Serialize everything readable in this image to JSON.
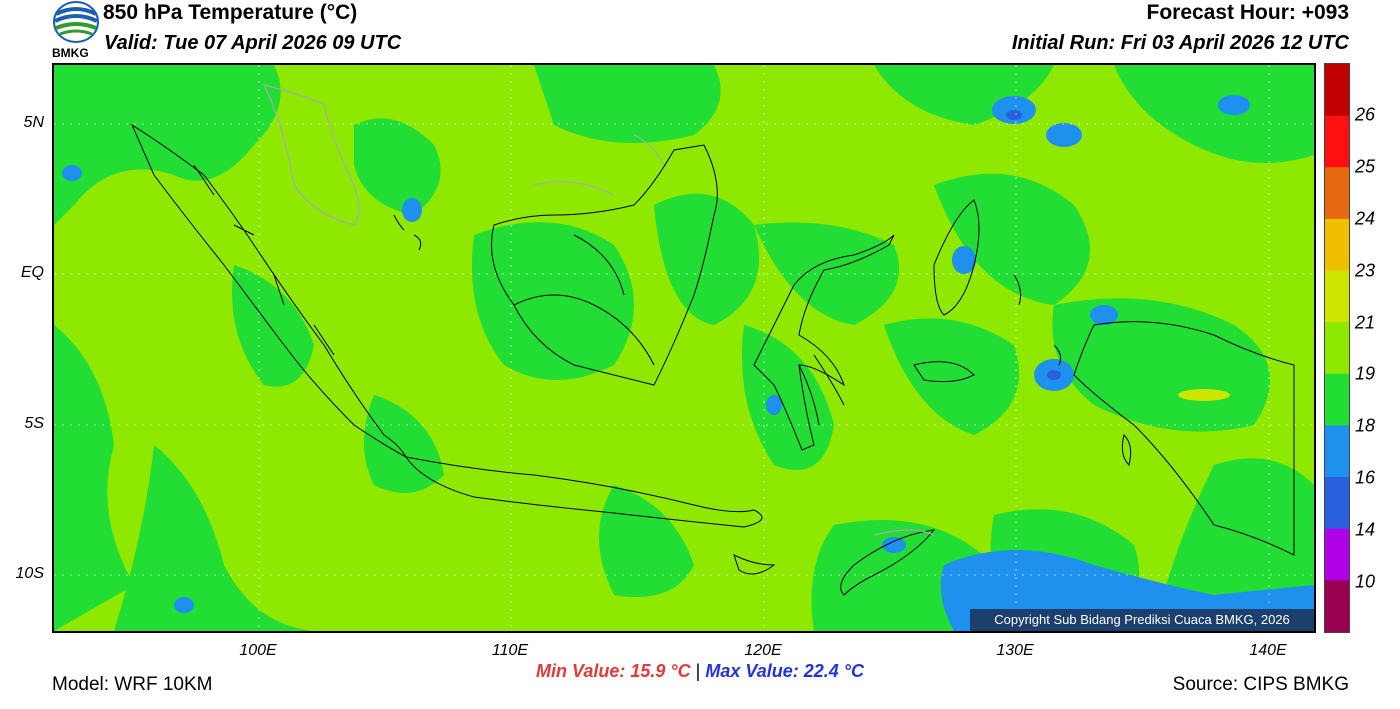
{
  "header": {
    "title": "850 hPa Temperature (°C)",
    "valid": "Valid: Tue 07 April 2026 09 UTC",
    "forecast_hour": "Forecast Hour: +093",
    "initial_run": "Initial Run: Fri 03 April 2026 12 UTC",
    "logo_text": "BMKG"
  },
  "axes": {
    "lat_ticks": [
      "5N",
      "EQ",
      "5S",
      "10S"
    ],
    "lon_ticks": [
      "100E",
      "110E",
      "120E",
      "130E",
      "140E"
    ]
  },
  "colorbar": {
    "labels": [
      "26",
      "25",
      "24",
      "23",
      "21",
      "19",
      "18",
      "16",
      "14",
      "10"
    ],
    "colors": [
      "#c00000",
      "#ff1010",
      "#e86a10",
      "#f0c000",
      "#cde600",
      "#8ee800",
      "#22dd33",
      "#1e90ee",
      "#2860e0",
      "#b000e8",
      "#9a0050"
    ]
  },
  "footer": {
    "min_value": "Min Value: 15.9 °C",
    "separator": "|",
    "max_value": "Max Value: 22.4 °C",
    "model": "Model: WRF 10KM",
    "source": "Source: CIPS BMKG",
    "copyright": "Copyright Sub Bidang Prediksi Cuaca BMKG, 2026"
  }
}
